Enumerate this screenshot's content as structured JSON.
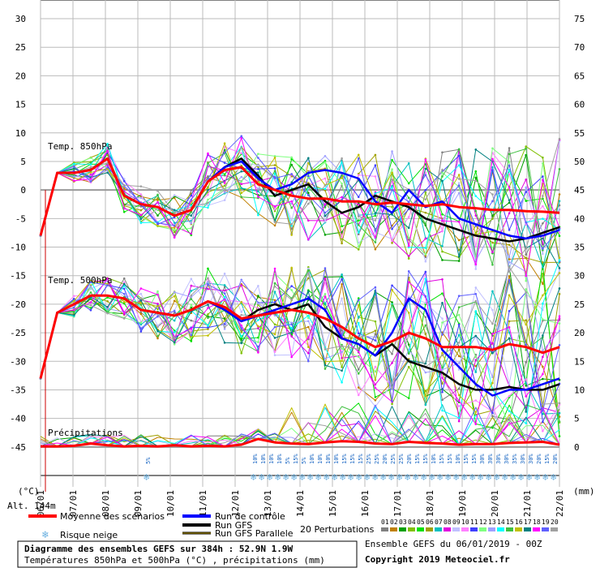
{
  "chart_data": {
    "type": "line",
    "title": "Diagramme des ensembles GEFS sur 384h : 52.9N 1.9W",
    "subtitle": "Températures 850hPa et 500hPa (°C) , précipitations (mm)",
    "y_left_label": "(°C)",
    "y_right_label": "(mm)",
    "altitude_label": "Alt. 144m",
    "y_left_ticks": [
      30,
      25,
      20,
      15,
      10,
      5,
      0,
      -5,
      -10,
      -15,
      -20,
      -25,
      -30,
      -35,
      -40,
      -45
    ],
    "y_right_ticks": [
      75,
      70,
      65,
      60,
      55,
      50,
      45,
      40,
      35,
      30,
      25,
      20,
      15,
      10,
      5,
      0
    ],
    "ylim": [
      -50,
      30
    ],
    "x_ticks": [
      "06/01",
      "07/01",
      "08/01",
      "09/01",
      "10/01",
      "11/01",
      "12/01",
      "13/01",
      "14/01",
      "15/01",
      "16/01",
      "17/01",
      "18/01",
      "19/01",
      "20/01",
      "21/01",
      "22/01"
    ],
    "panel_labels": {
      "t850": "Temp. 850hPa",
      "t500": "Temp. 500hPa",
      "precip": "Précipitations"
    },
    "mean_850": [
      -8,
      3,
      3,
      3.5,
      5.5,
      -1,
      -2.5,
      -3,
      -4.5,
      -3.5,
      1.5,
      3.5,
      4,
      1,
      0,
      -1,
      -1.5,
      -1.5,
      -2,
      -2,
      -2.5,
      -2.2,
      -2.5,
      -2.8,
      -2.5,
      -3,
      -3.2,
      -3.5,
      -3.5,
      -3.7,
      -3.8,
      -4
    ],
    "control_850": [
      -8,
      3,
      3,
      3.5,
      5.5,
      -1,
      -2.5,
      -3,
      -4.5,
      -3.5,
      1.5,
      4,
      5,
      2,
      0,
      1,
      3,
      3.5,
      3,
      2,
      -2,
      -4,
      0,
      -3,
      -2,
      -5,
      -6,
      -7,
      -8,
      -8.5,
      -8,
      -7
    ],
    "gfs_850": [
      -8,
      3,
      3,
      3.5,
      5.5,
      -1,
      -2.5,
      -3,
      -4.5,
      -3.5,
      1.5,
      4,
      5.5,
      2.5,
      -1,
      0,
      1,
      -2,
      -4,
      -3,
      -1,
      -2,
      -3,
      -5,
      -6,
      -7,
      -8,
      -8.5,
      -9,
      -8.5,
      -7.5,
      -6.5
    ],
    "mean_500": [
      -33,
      -21.5,
      -20,
      -18.5,
      -18.5,
      -19,
      -21,
      -21.5,
      -22,
      -21,
      -19.5,
      -20.5,
      -22.5,
      -22,
      -21.5,
      -21,
      -21.5,
      -22.5,
      -24,
      -26,
      -27.5,
      -26.5,
      -25,
      -26,
      -27.5,
      -27.5,
      -27.5,
      -28,
      -27,
      -27.5,
      -28.5,
      -27.5
    ],
    "control_500": [
      -33,
      -21.5,
      -20,
      -18.5,
      -18.5,
      -19,
      -21,
      -21.5,
      -22,
      -21,
      -19.5,
      -21,
      -23,
      -22,
      -21,
      -20,
      -19,
      -21,
      -26,
      -27,
      -29,
      -25,
      -19,
      -21,
      -28,
      -31,
      -34,
      -36,
      -35,
      -35,
      -34,
      -33
    ],
    "gfs_500": [
      -33,
      -21.5,
      -20,
      -18.5,
      -18.5,
      -19,
      -21,
      -21.5,
      -22,
      -21,
      -19.5,
      -21,
      -23,
      -21,
      -20,
      -21,
      -20,
      -24,
      -26,
      -27,
      -29,
      -27,
      -30,
      -31,
      -32,
      -34,
      -35,
      -35,
      -34.5,
      -35,
      -35,
      -34
    ],
    "mean_precip": [
      0.1,
      0.1,
      0.2,
      0.6,
      0.3,
      0.1,
      0.2,
      0.1,
      0.3,
      0.1,
      0.2,
      0.1,
      0.4,
      1.4,
      0.8,
      0.6,
      0.5,
      0.8,
      1,
      0.9,
      0.6,
      0.5,
      0.9,
      0.7,
      0.6,
      0.4,
      0.5,
      0.5,
      0.7,
      0.8,
      0.9,
      0.4
    ],
    "snow_risk": [
      {
        "date_index": 3.3,
        "pct": "5%"
      },
      {
        "date_index": 6.6,
        "pct": "10%"
      },
      {
        "date_index": 6.85,
        "pct": "10%"
      },
      {
        "date_index": 7.1,
        "pct": "10%"
      },
      {
        "date_index": 7.35,
        "pct": "10%"
      },
      {
        "date_index": 7.6,
        "pct": "5%"
      },
      {
        "date_index": 7.85,
        "pct": "15%"
      },
      {
        "date_index": 8.1,
        "pct": "5%"
      },
      {
        "date_index": 8.35,
        "pct": "10%"
      },
      {
        "date_index": 8.6,
        "pct": "10%"
      },
      {
        "date_index": 8.85,
        "pct": "10%"
      },
      {
        "date_index": 9.1,
        "pct": "10%"
      },
      {
        "date_index": 9.35,
        "pct": "15%"
      },
      {
        "date_index": 9.6,
        "pct": "15%"
      },
      {
        "date_index": 9.85,
        "pct": "15%"
      },
      {
        "date_index": 10.1,
        "pct": "25%"
      },
      {
        "date_index": 10.35,
        "pct": "25%"
      },
      {
        "date_index": 10.6,
        "pct": "20%"
      },
      {
        "date_index": 10.85,
        "pct": "25%"
      },
      {
        "date_index": 11.1,
        "pct": "25%"
      },
      {
        "date_index": 11.35,
        "pct": "20%"
      },
      {
        "date_index": 11.6,
        "pct": "15%"
      },
      {
        "date_index": 11.85,
        "pct": "15%"
      },
      {
        "date_index": 12.1,
        "pct": "10%"
      },
      {
        "date_index": 12.35,
        "pct": "15%"
      },
      {
        "date_index": 12.6,
        "pct": "15%"
      },
      {
        "date_index": 12.85,
        "pct": "10%"
      },
      {
        "date_index": 13.1,
        "pct": "15%"
      },
      {
        "date_index": 13.35,
        "pct": "15%"
      },
      {
        "date_index": 13.6,
        "pct": "30%"
      },
      {
        "date_index": 13.85,
        "pct": "30%"
      },
      {
        "date_index": 14.1,
        "pct": "30%"
      },
      {
        "date_index": 14.35,
        "pct": "30%"
      },
      {
        "date_index": 14.6,
        "pct": "35%"
      },
      {
        "date_index": 14.85,
        "pct": "30%"
      },
      {
        "date_index": 15.1,
        "pct": "30%"
      },
      {
        "date_index": 15.35,
        "pct": "20%"
      },
      {
        "date_index": 15.6,
        "pct": "15%"
      },
      {
        "date_index": 15.85,
        "pct": "20%"
      }
    ]
  },
  "legend": {
    "mean": "Moyenne des scénarios",
    "control": "Run de contrôle",
    "gfs": "Run GFS",
    "gfs_parallel": "Run GFS Parallele",
    "snow": "Risque neige",
    "perturbations": "20 Perturbations",
    "perturbation_numbers": [
      "01",
      "02",
      "03",
      "04",
      "05",
      "06",
      "07",
      "08",
      "09",
      "10",
      "11",
      "12",
      "13",
      "14",
      "15",
      "16",
      "17",
      "18",
      "19",
      "20"
    ],
    "perturbation_colors": [
      "#808080",
      "#c08000",
      "#00a000",
      "#80c000",
      "#00e000",
      "#a0a000",
      "#00c0c0",
      "#e000e0",
      "#c0c0ff",
      "#ff80ff",
      "#4040ff",
      "#80ff80",
      "#a0a0ff",
      "#00ffff",
      "#40c040",
      "#c0c000",
      "#008080",
      "#ff00ff",
      "#6060ff",
      "#a0a0a0"
    ]
  },
  "colors": {
    "mean": "#ff0000",
    "control": "#0000ff",
    "gfs": "#000000",
    "gfs_parallel": "#c0a000"
  },
  "footer": {
    "ensemble": "Ensemble GEFS du 06/01/2019 - 00Z",
    "copyright": "Copyright 2019 Meteociel.fr"
  }
}
